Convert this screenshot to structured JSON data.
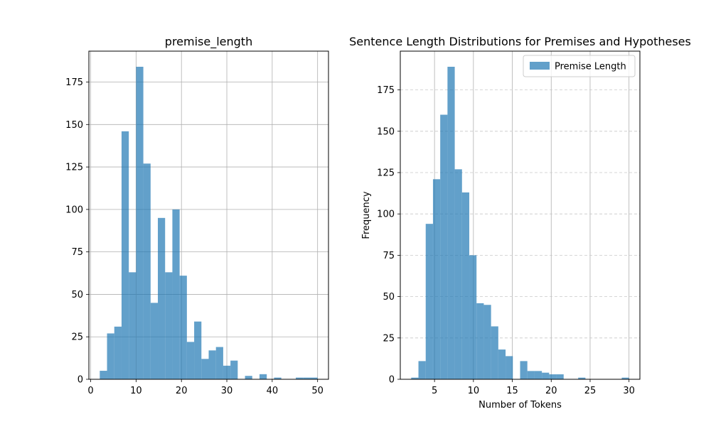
{
  "chart_data": [
    {
      "type": "bar",
      "title": "premise_length",
      "xlabel": "",
      "ylabel": "",
      "xlim": [
        -0.4,
        52.4
      ],
      "ylim": [
        0,
        193.2
      ],
      "xticks": [
        0,
        10,
        20,
        30,
        40,
        50
      ],
      "yticks": [
        0,
        25,
        50,
        75,
        100,
        125,
        150,
        175
      ],
      "grid": "both",
      "legend": "none",
      "color": "#1f77b4",
      "alpha": 0.7,
      "bins": [
        {
          "x0": 2.0,
          "x1": 3.6,
          "value": 5
        },
        {
          "x0": 3.6,
          "x1": 5.2,
          "value": 27
        },
        {
          "x0": 5.2,
          "x1": 6.8,
          "value": 31
        },
        {
          "x0": 6.8,
          "x1": 8.4,
          "value": 146
        },
        {
          "x0": 8.4,
          "x1": 10.0,
          "value": 63
        },
        {
          "x0": 10.0,
          "x1": 11.6,
          "value": 184
        },
        {
          "x0": 11.6,
          "x1": 13.2,
          "value": 127
        },
        {
          "x0": 13.2,
          "x1": 14.8,
          "value": 45
        },
        {
          "x0": 14.8,
          "x1": 16.4,
          "value": 95
        },
        {
          "x0": 16.4,
          "x1": 18.0,
          "value": 63
        },
        {
          "x0": 18.0,
          "x1": 19.6,
          "value": 100
        },
        {
          "x0": 19.6,
          "x1": 21.2,
          "value": 61
        },
        {
          "x0": 21.2,
          "x1": 22.8,
          "value": 22
        },
        {
          "x0": 22.8,
          "x1": 24.4,
          "value": 34
        },
        {
          "x0": 24.4,
          "x1": 26.0,
          "value": 12
        },
        {
          "x0": 26.0,
          "x1": 27.6,
          "value": 17
        },
        {
          "x0": 27.6,
          "x1": 29.2,
          "value": 19
        },
        {
          "x0": 29.2,
          "x1": 30.8,
          "value": 8
        },
        {
          "x0": 30.8,
          "x1": 32.4,
          "value": 11
        },
        {
          "x0": 32.4,
          "x1": 34.0,
          "value": 0
        },
        {
          "x0": 34.0,
          "x1": 35.6,
          "value": 2
        },
        {
          "x0": 35.6,
          "x1": 37.2,
          "value": 0
        },
        {
          "x0": 37.2,
          "x1": 38.8,
          "value": 3
        },
        {
          "x0": 38.8,
          "x1": 40.4,
          "value": 0
        },
        {
          "x0": 40.4,
          "x1": 42.0,
          "value": 1
        },
        {
          "x0": 42.0,
          "x1": 43.6,
          "value": 0
        },
        {
          "x0": 43.6,
          "x1": 45.2,
          "value": 0
        },
        {
          "x0": 45.2,
          "x1": 46.8,
          "value": 1
        },
        {
          "x0": 46.8,
          "x1": 48.4,
          "value": 1
        },
        {
          "x0": 48.4,
          "x1": 50.0,
          "value": 1
        }
      ]
    },
    {
      "type": "bar",
      "title": "Sentence Length Distributions for Premises and Hypotheses",
      "xlabel": "Number of Tokens",
      "ylabel": "Frequency",
      "xlim": [
        0.6,
        31.4
      ],
      "ylim": [
        0,
        198.45
      ],
      "xticks": [
        5,
        10,
        15,
        20,
        25,
        30
      ],
      "yticks": [
        0,
        25,
        50,
        75,
        100,
        125,
        150,
        175
      ],
      "grid": "x solid, y dashed",
      "legend": "top-right",
      "color": "#1f77b4",
      "alpha": 0.7,
      "series": [
        {
          "name": "Premise Length"
        }
      ],
      "bins": [
        {
          "x0": 2.0,
          "x1": 2.933,
          "value": 1
        },
        {
          "x0": 2.933,
          "x1": 3.867,
          "value": 11
        },
        {
          "x0": 3.867,
          "x1": 4.8,
          "value": 94
        },
        {
          "x0": 4.8,
          "x1": 5.733,
          "value": 121
        },
        {
          "x0": 5.733,
          "x1": 6.667,
          "value": 160
        },
        {
          "x0": 6.667,
          "x1": 7.6,
          "value": 189
        },
        {
          "x0": 7.6,
          "x1": 8.533,
          "value": 127
        },
        {
          "x0": 8.533,
          "x1": 9.467,
          "value": 113
        },
        {
          "x0": 9.467,
          "x1": 10.4,
          "value": 75
        },
        {
          "x0": 10.4,
          "x1": 11.333,
          "value": 46
        },
        {
          "x0": 11.333,
          "x1": 12.267,
          "value": 45
        },
        {
          "x0": 12.267,
          "x1": 13.2,
          "value": 32
        },
        {
          "x0": 13.2,
          "x1": 14.133,
          "value": 18
        },
        {
          "x0": 14.133,
          "x1": 15.067,
          "value": 14
        },
        {
          "x0": 15.067,
          "x1": 16.0,
          "value": 0
        },
        {
          "x0": 16.0,
          "x1": 16.933,
          "value": 11
        },
        {
          "x0": 16.933,
          "x1": 17.867,
          "value": 5
        },
        {
          "x0": 17.867,
          "x1": 18.8,
          "value": 5
        },
        {
          "x0": 18.8,
          "x1": 19.733,
          "value": 4
        },
        {
          "x0": 19.733,
          "x1": 20.667,
          "value": 3
        },
        {
          "x0": 20.667,
          "x1": 21.6,
          "value": 3
        },
        {
          "x0": 21.6,
          "x1": 22.533,
          "value": 0
        },
        {
          "x0": 22.533,
          "x1": 23.467,
          "value": 0
        },
        {
          "x0": 23.467,
          "x1": 24.4,
          "value": 1
        },
        {
          "x0": 24.4,
          "x1": 25.333,
          "value": 0
        },
        {
          "x0": 25.333,
          "x1": 26.267,
          "value": 0
        },
        {
          "x0": 26.267,
          "x1": 27.2,
          "value": 0
        },
        {
          "x0": 27.2,
          "x1": 28.133,
          "value": 0
        },
        {
          "x0": 28.133,
          "x1": 29.067,
          "value": 0
        },
        {
          "x0": 29.067,
          "x1": 30.0,
          "value": 1
        }
      ]
    }
  ]
}
